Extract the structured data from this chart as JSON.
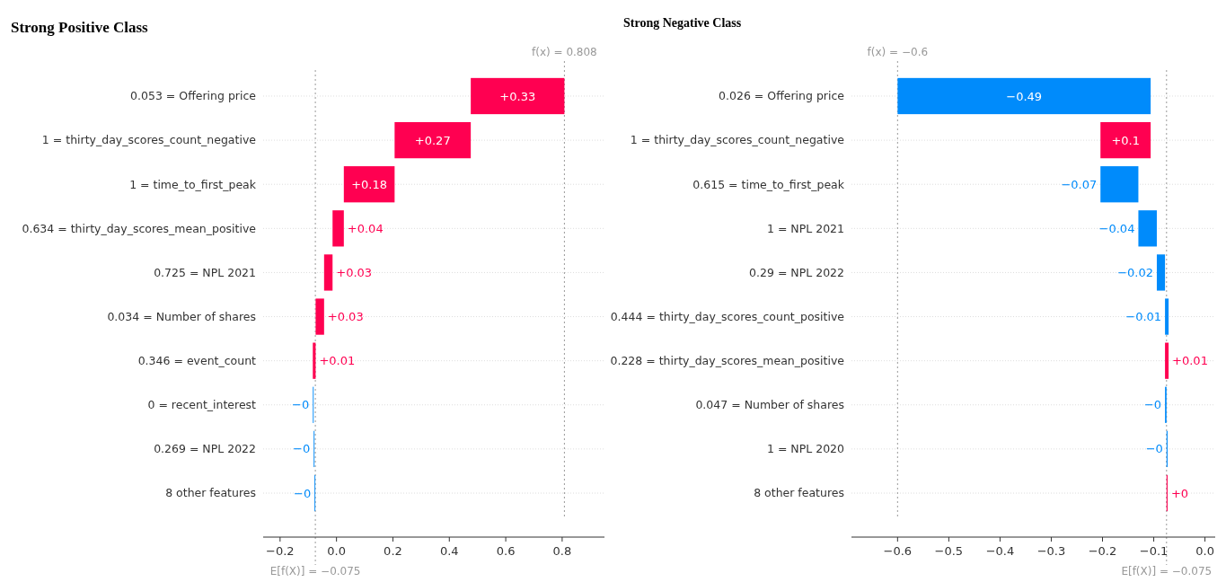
{
  "chart_data": [
    {
      "type": "bar",
      "orientation": "horizontal",
      "title": "Strong Positive Class",
      "categories": [
        "0.053 = Offering price",
        "1 = thirty_day_scores_count_negative",
        "1 = time_to_first_peak",
        "0.634 = thirty_day_scores_mean_positive",
        "0.725 = NPL 2021",
        "0.034 = Number of shares",
        "0.346 = event_count",
        "0 = recent_interest",
        "0.269 = NPL 2022",
        "8 other features"
      ],
      "base": [
        0.476,
        0.206,
        0.026,
        -0.014,
        -0.044,
        -0.074,
        -0.084,
        -0.081,
        -0.078,
        -0.075
      ],
      "values": [
        0.332,
        0.27,
        0.18,
        0.04,
        0.03,
        0.03,
        0.01,
        -0.003,
        -0.003,
        -0.003
      ],
      "colors": [
        "#ff0051",
        "#ff0051",
        "#ff0051",
        "#ff0051",
        "#ff0051",
        "#ff0051",
        "#ff0051",
        "#008bfb",
        "#008bfb",
        "#008bfb"
      ],
      "value_labels": [
        "+0.33",
        "+0.27",
        "+0.18",
        "+0.04",
        "+0.03",
        "+0.03",
        "+0.01",
        "−0",
        "−0",
        "−0"
      ],
      "xlim": [
        -0.26,
        0.95
      ],
      "xticks": [
        {
          "value": -0.2,
          "label": "−0.2"
        },
        {
          "value": 0,
          "label": "0.0"
        },
        {
          "value": 0.2,
          "label": "0.2"
        },
        {
          "value": 0.4,
          "label": "0.4"
        },
        {
          "value": 0.6,
          "label": "0.6"
        },
        {
          "value": 0.8,
          "label": "0.8"
        }
      ],
      "ref_lines": [
        {
          "axis": "x",
          "value": 0.808,
          "label": "f(x) = 0.808",
          "color": "#999999",
          "line_style": "dotted"
        },
        {
          "axis": "x",
          "value": -0.075,
          "label": "E[f(X)] = −0.075",
          "color": "#999999",
          "line_style": "dotted"
        }
      ],
      "grid": "y"
    },
    {
      "type": "bar",
      "orientation": "horizontal",
      "title": "Strong Negative Class",
      "categories": [
        "0.026 = Offering price",
        "1 = thirty_day_scores_count_negative",
        "0.615 = time_to_first_peak",
        "1 = NPL 2021",
        "0.29 = NPL 2022",
        "0.444 = thirty_day_scores_count_positive",
        "0.228 = thirty_day_scores_mean_positive",
        "0.047 = Number of shares",
        "1 = NPL 2020",
        "8 other features"
      ],
      "base": [
        -0.106,
        -0.204,
        -0.13,
        -0.094,
        -0.078,
        -0.071,
        -0.078,
        -0.075,
        -0.073,
        -0.075
      ],
      "values": [
        -0.494,
        0.098,
        -0.074,
        -0.036,
        -0.016,
        -0.007,
        0.007,
        -0.003,
        -0.002,
        0.002
      ],
      "colors": [
        "#008bfb",
        "#ff0051",
        "#008bfb",
        "#008bfb",
        "#008bfb",
        "#008bfb",
        "#ff0051",
        "#008bfb",
        "#008bfb",
        "#ff0051"
      ],
      "value_labels": [
        "−0.49",
        "+0.1",
        "−0.07",
        "−0.04",
        "−0.02",
        "−0.01",
        "+0.01",
        "−0",
        "−0",
        "+0"
      ],
      "xlim": [
        -0.69,
        0.02
      ],
      "xticks": [
        {
          "value": -0.6,
          "label": "−0.6"
        },
        {
          "value": -0.5,
          "label": "−0.5"
        },
        {
          "value": -0.4,
          "label": "−0.4"
        },
        {
          "value": -0.3,
          "label": "−0.3"
        },
        {
          "value": -0.2,
          "label": "−0.2"
        },
        {
          "value": -0.1,
          "label": "−0.1"
        },
        {
          "value": 0,
          "label": "0.0"
        }
      ],
      "ref_lines": [
        {
          "axis": "x",
          "value": -0.6,
          "label": "f(x) = −0.6",
          "color": "#999999",
          "line_style": "dotted"
        },
        {
          "axis": "x",
          "value": -0.075,
          "label": "E[f(X)] = −0.075",
          "color": "#999999",
          "line_style": "dotted"
        }
      ],
      "grid": "y"
    }
  ]
}
